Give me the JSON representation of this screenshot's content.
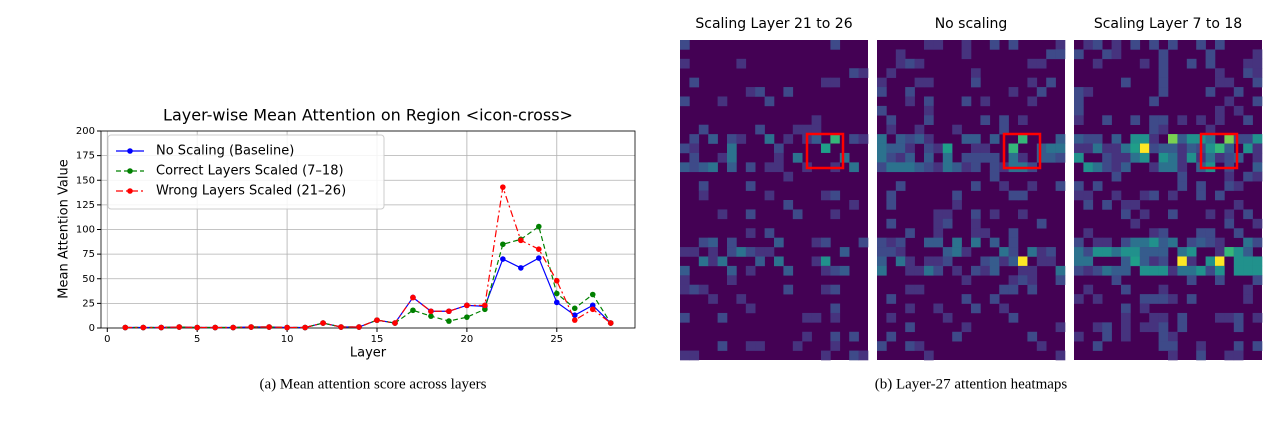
{
  "chart_data": {
    "type": "line",
    "title": "Layer-wise Mean Attention on Region <icon-cross>",
    "xlabel": "Layer",
    "ylabel": "Mean Attention Value",
    "x": [
      1,
      2,
      3,
      4,
      5,
      6,
      7,
      8,
      9,
      10,
      11,
      12,
      13,
      14,
      15,
      16,
      17,
      18,
      19,
      20,
      21,
      22,
      23,
      24,
      25,
      26,
      27,
      28
    ],
    "series": [
      {
        "name": "No Scaling (Baseline)",
        "color": "#0000ff",
        "linestyle": "solid",
        "values": [
          0.5,
          0.5,
          0.5,
          1,
          0.5,
          0.5,
          0.5,
          1,
          1,
          0.5,
          0.5,
          5,
          1,
          1,
          8,
          5,
          31,
          17,
          17,
          23,
          22,
          70,
          61,
          71,
          26,
          13,
          23,
          5
        ]
      },
      {
        "name": "Correct Layers Scaled (7–18)",
        "color": "#008000",
        "linestyle": "dashed",
        "values": [
          0.5,
          0.5,
          0.5,
          1,
          0.5,
          0.5,
          0.5,
          1,
          1,
          0.5,
          0.5,
          5,
          1,
          1,
          8,
          5,
          18,
          12,
          7,
          11,
          19,
          85,
          90,
          103,
          35,
          20,
          34,
          5
        ]
      },
      {
        "name": "Wrong Layers Scaled (21–26)",
        "color": "#ff0000",
        "linestyle": "dashdot",
        "values": [
          0.5,
          0.5,
          0.5,
          1,
          0.5,
          0.5,
          0.5,
          1,
          1,
          0.5,
          0.5,
          5,
          1,
          1,
          8,
          5,
          31,
          17,
          17,
          23,
          23,
          143,
          89,
          80,
          48,
          8,
          19,
          5
        ]
      }
    ],
    "xlim": [
      -0.35,
      29.35
    ],
    "xticks": [
      0,
      5,
      10,
      15,
      20,
      25
    ],
    "ylim": [
      0,
      200
    ],
    "yticks": [
      0,
      25,
      50,
      75,
      100,
      125,
      150,
      175,
      200
    ],
    "grid": true,
    "legend": "upper left"
  },
  "caption_a": "(a) Mean attention score across layers",
  "heatmaps": {
    "titles": [
      "Scaling Layer 21 to 26",
      "No scaling",
      "Scaling Layer 7 to 18"
    ],
    "caption": "(b) Layer-27 attention heatmaps"
  }
}
